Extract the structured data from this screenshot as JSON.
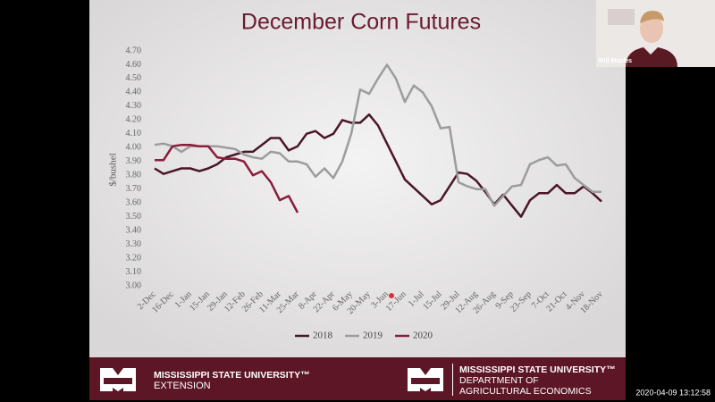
{
  "chart_data": {
    "type": "line",
    "title": "December Corn Futures",
    "y_label": "$/bushel",
    "categories": [
      "2-Dec",
      null,
      "16-Dec",
      null,
      "1-Jan",
      null,
      "15-Jan",
      null,
      "29-Jan",
      null,
      "12-Feb",
      null,
      "26-Feb",
      null,
      "11-Mar",
      null,
      "25-Mar",
      null,
      "8-Apr",
      null,
      "22-Apr",
      null,
      "6-May",
      null,
      "20-May",
      null,
      "3-Jun",
      null,
      "17-Jun",
      null,
      "1-Jul",
      null,
      "15-Jul",
      null,
      "29-Jul",
      null,
      "12-Aug",
      null,
      "26-Aug",
      null,
      "9-Sep",
      null,
      "23-Sep",
      null,
      "7-Oct",
      null,
      "21-Oct",
      null,
      "4-Nov",
      null,
      "18-Nov"
    ],
    "series": [
      {
        "name": "2018",
        "color": "#4a1629",
        "values": [
          3.85,
          3.81,
          3.83,
          3.85,
          3.85,
          3.83,
          3.85,
          3.88,
          3.93,
          3.95,
          3.97,
          3.97,
          4.02,
          4.07,
          4.07,
          3.98,
          4.01,
          4.1,
          4.12,
          4.07,
          4.1,
          4.2,
          4.18,
          4.18,
          4.24,
          4.16,
          4.03,
          3.9,
          3.77,
          3.71,
          3.65,
          3.59,
          3.62,
          3.72,
          3.82,
          3.81,
          3.76,
          3.68,
          3.59,
          3.66,
          3.58,
          3.5,
          3.62,
          3.67,
          3.67,
          3.73,
          3.67,
          3.67,
          3.72,
          3.67,
          3.61
        ]
      },
      {
        "name": "2019",
        "color": "#9c9c9c",
        "values": [
          4.02,
          4.03,
          4.01,
          3.97,
          4.01,
          4.01,
          4.01,
          4.01,
          4.0,
          3.99,
          3.95,
          3.93,
          3.92,
          3.97,
          3.96,
          3.9,
          3.9,
          3.88,
          3.79,
          3.85,
          3.78,
          3.9,
          4.1,
          4.42,
          4.39,
          4.5,
          4.6,
          4.5,
          4.33,
          4.45,
          4.4,
          4.3,
          4.14,
          4.15,
          3.75,
          3.72,
          3.7,
          3.7,
          3.58,
          3.65,
          3.72,
          3.73,
          3.88,
          3.91,
          3.93,
          3.87,
          3.88,
          3.78,
          3.73,
          3.68,
          3.68
        ]
      },
      {
        "name": "2020",
        "color": "#8a1c3c",
        "values": [
          3.91,
          3.91,
          4.01,
          4.02,
          4.02,
          4.01,
          4.01,
          3.93,
          3.92,
          3.92,
          3.9,
          3.8,
          3.83,
          3.75,
          3.62,
          3.65,
          3.53,
          null,
          null,
          null,
          null,
          null,
          null,
          null,
          null,
          null,
          null,
          null,
          null,
          null,
          null,
          null,
          null,
          null,
          null,
          null,
          null,
          null,
          null,
          null,
          null,
          null,
          null,
          null,
          null,
          null,
          null,
          null,
          null,
          null,
          null
        ]
      }
    ],
    "ylim": [
      3.0,
      4.7
    ],
    "yticks": [
      {
        "value": 3.0,
        "label": "3.00"
      },
      {
        "value": 3.1,
        "label": "3.10"
      },
      {
        "value": 3.2,
        "label": "3.20"
      },
      {
        "value": 3.3,
        "label": "3.30"
      },
      {
        "value": 3.4,
        "label": "3.40"
      },
      {
        "value": 3.5,
        "label": "3.50"
      },
      {
        "value": 3.6,
        "label": "3.60"
      },
      {
        "value": 3.7,
        "label": "3.70"
      },
      {
        "value": 3.8,
        "label": "3.80"
      },
      {
        "value": 3.9,
        "label": "3.90"
      },
      {
        "value": 4.0,
        "label": "4.00"
      },
      {
        "value": 4.1,
        "label": "4.10"
      },
      {
        "value": 4.2,
        "label": "4.20"
      },
      {
        "value": 4.3,
        "label": "4.30"
      },
      {
        "value": 4.4,
        "label": "4.40"
      },
      {
        "value": 4.5,
        "label": "4.50"
      },
      {
        "value": 4.6,
        "label": "4.60"
      },
      {
        "value": 4.7,
        "label": "4.70"
      }
    ],
    "grid": false,
    "legend": "bottom"
  },
  "footer": {
    "left": {
      "line1": "MISSISSIPPI STATE UNIVERSITY™",
      "line2": "EXTENSION"
    },
    "right": {
      "line1": "MISSISSIPPI STATE UNIVERSITY™",
      "line2": "DEPARTMENT OF",
      "line3": "AGRICULTURAL ECONOMICS"
    }
  },
  "video": {
    "participant": "Will Maples",
    "timestamp": "2020-04-09 13:12:58"
  }
}
